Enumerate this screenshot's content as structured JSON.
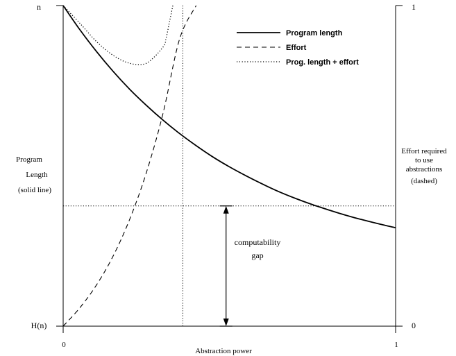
{
  "chart_data": {
    "type": "line",
    "title": "",
    "xlabel": "Abstraction power",
    "x_ticks": [
      "0",
      "1"
    ],
    "xlim": [
      0,
      1
    ],
    "left_axis": {
      "label_lines": [
        "Program",
        "Length",
        "(solid line)"
      ],
      "top_label": "n",
      "bottom_label": "H(n)",
      "ylim": [
        0,
        1
      ]
    },
    "right_axis": {
      "label_lines": [
        "Effort required",
        "to use",
        "abstractions",
        "(dashed)"
      ],
      "top_label": "1",
      "bottom_label": "0",
      "ylim": [
        0,
        1
      ]
    },
    "legend_position": "top-right",
    "series": [
      {
        "name": "Program length",
        "style": "solid",
        "x": [
          0,
          0.05,
          0.1,
          0.15,
          0.2,
          0.25,
          0.3,
          0.35,
          0.4,
          0.45,
          0.5,
          0.55,
          0.6,
          0.65,
          0.7,
          0.75,
          0.8,
          0.85,
          0.9,
          0.95,
          1.0
        ],
        "values": [
          1.0,
          0.925,
          0.857,
          0.795,
          0.739,
          0.689,
          0.643,
          0.601,
          0.563,
          0.528,
          0.497,
          0.469,
          0.443,
          0.419,
          0.398,
          0.379,
          0.362,
          0.346,
          0.332,
          0.319,
          0.307
        ]
      },
      {
        "name": "Effort",
        "style": "dashed",
        "x": [
          0,
          0.05,
          0.1,
          0.15,
          0.2,
          0.25,
          0.3,
          0.35,
          0.4
        ],
        "values": [
          0.0,
          0.057,
          0.128,
          0.218,
          0.333,
          0.478,
          0.662,
          0.895,
          1.0
        ]
      },
      {
        "name": "Prog. length + effort",
        "style": "dotted",
        "x": [
          0,
          0.05,
          0.1,
          0.15,
          0.2,
          0.25,
          0.3,
          0.31,
          0.32,
          0.33
        ],
        "values": [
          1.0,
          0.945,
          0.888,
          0.845,
          0.82,
          0.82,
          0.87,
          0.9,
          0.95,
          1.0
        ]
      }
    ],
    "reference_lines": [
      {
        "orientation": "horizontal",
        "style": "dotted",
        "y": 0.375
      },
      {
        "orientation": "vertical",
        "style": "dotted",
        "x": 0.36
      }
    ],
    "annotation": {
      "lines": [
        "computability",
        "gap"
      ],
      "x": 0.49,
      "y_from": 0,
      "y_to": 0.375
    }
  }
}
